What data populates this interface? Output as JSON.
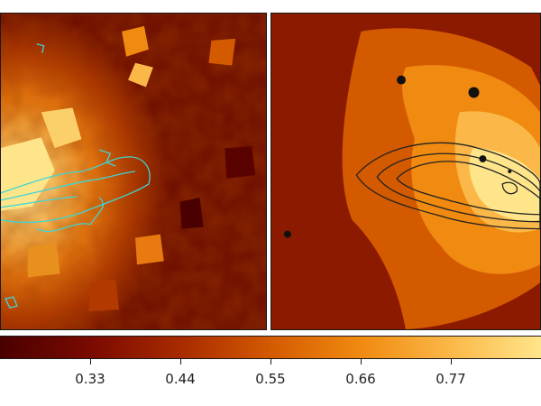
{
  "panels": [
    {
      "name": "left-panel",
      "colormap": "afmhot",
      "contour_color": "#3fd6d6",
      "contours": "cyan"
    },
    {
      "name": "right-panel",
      "colormap": "afmhot",
      "contour_color": "#222222",
      "contours": "black",
      "point_source_count": 5
    }
  ],
  "colorbar": {
    "colormap": "afmhot",
    "ticks": [
      {
        "value": 0.33,
        "label": "0.33"
      },
      {
        "value": 0.44,
        "label": "0.44"
      },
      {
        "value": 0.55,
        "label": "0.55"
      },
      {
        "value": 0.66,
        "label": "0.66"
      },
      {
        "value": 0.77,
        "label": "0.77"
      }
    ],
    "colors": [
      "#4a0000",
      "#7a0a00",
      "#a82a00",
      "#d45a00",
      "#f08a10",
      "#fbb848",
      "#ffe58a"
    ]
  }
}
